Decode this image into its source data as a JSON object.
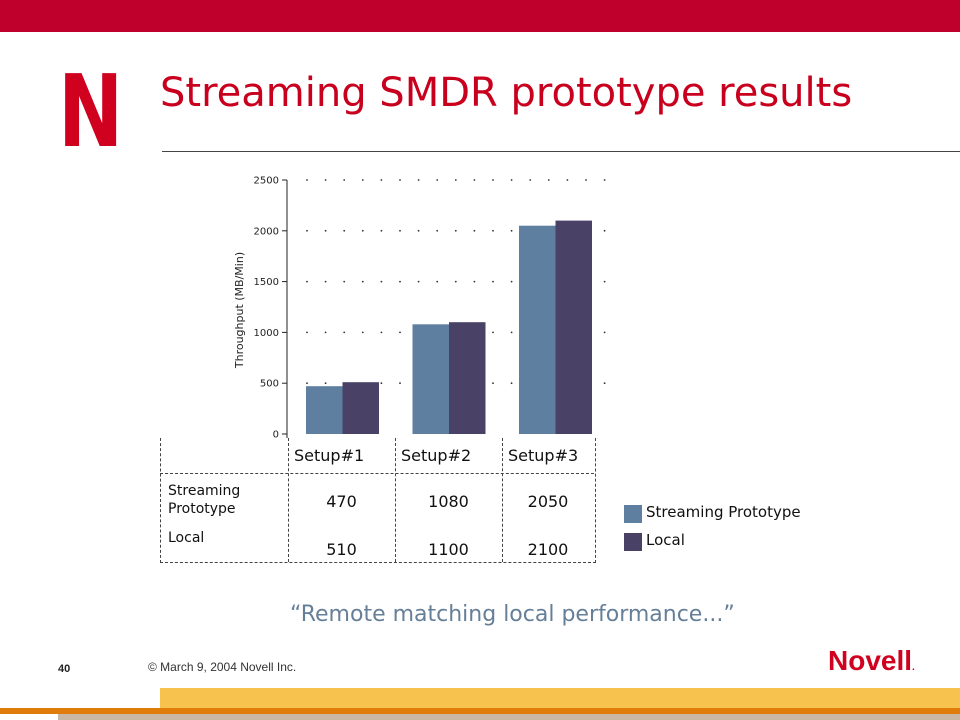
{
  "slide": {
    "title": "Streaming SMDR prototype results",
    "quote": "“Remote matching local performance...”",
    "page_number": "40",
    "copyright": "© March 9, 2004 Novell Inc.",
    "logo_letter": "N",
    "brand_name": "Novell",
    "brand_mark": ".",
    "colors": {
      "brand_red": "#c0002c",
      "title_red": "#c8001e",
      "quote": "#667f98"
    }
  },
  "chart_data": {
    "type": "bar",
    "categories": [
      "Setup#1",
      "Setup#2",
      "Setup#3"
    ],
    "series": [
      {
        "name": "Streaming Prototype",
        "values": [
          470,
          1080,
          2050
        ],
        "color": "#5f7fa0"
      },
      {
        "name": "Local",
        "values": [
          510,
          1100,
          2100
        ],
        "color": "#4a4266"
      }
    ],
    "ylabel": "Throughput (MB/Min)",
    "ylim": [
      0,
      2500
    ],
    "yticks": [
      0,
      500,
      1000,
      1500,
      2000,
      2500
    ],
    "grid": true,
    "legend": "right",
    "table_row_labels": [
      "Streaming Prototype",
      "Local"
    ]
  }
}
